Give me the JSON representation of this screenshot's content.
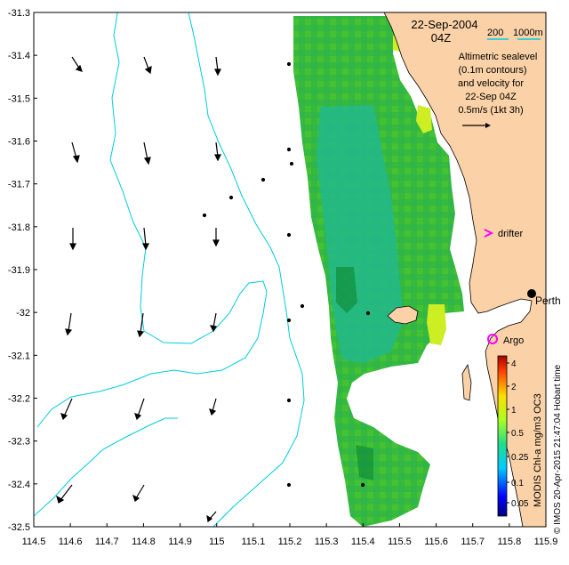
{
  "map": {
    "date_label": "22-Sep-2004",
    "time_label": "04Z",
    "scale_labels": {
      "a": "200",
      "b": "1000m"
    },
    "caption_lines": [
      "Altimetric sealevel",
      "(0.1m contours)",
      "and velocity for",
      "22-Sep 04Z",
      "0.5m/s (1kt 3h)"
    ],
    "x_ticks": [
      "114.5",
      "114.6",
      "114.7",
      "114.8",
      "114.9",
      "115",
      "115.1",
      "115.2",
      "115.3",
      "115.4",
      "115.5",
      "115.6",
      "115.7",
      "115.8",
      "115.9"
    ],
    "y_ticks": [
      "-31.3",
      "-31.4",
      "-31.5",
      "-31.6",
      "-31.7",
      "-31.8",
      "-31.9",
      "-32",
      "-32.1",
      "-32.2",
      "-32.3",
      "-32.4",
      "-32.5"
    ],
    "places": {
      "perth": "Perth",
      "drifter": "drifter",
      "argo": "Argo"
    },
    "colorbar": {
      "ticks": [
        "4",
        "2",
        "1",
        "0.5",
        "0.25",
        "0.1",
        "0.05"
      ],
      "label": "MODIS Chl-a mg/m3 OC3"
    },
    "credit": "© IMOS 20-Apr-2015 21:47:04 Hobart time",
    "colors": {
      "land": "#fbd2a7",
      "contour": "#00ccdd",
      "chl_green": "#33bb33",
      "chl_teal": "#22b58a",
      "chl_yellow": "#ccee22",
      "marker": "#ff00ff"
    }
  }
}
